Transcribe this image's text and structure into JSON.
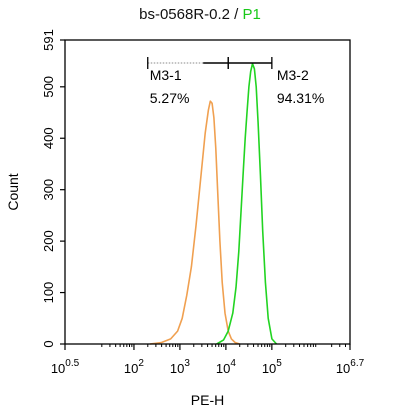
{
  "chart_data": {
    "type": "line",
    "title": {
      "sample": "bs-0568R-0.2",
      "separator": "/",
      "gate": "P1"
    },
    "xlabel": "PE-H",
    "ylabel": "Count",
    "x_scale": "log10",
    "xlim": [
      0.5,
      6.7
    ],
    "ylim": [
      0,
      591
    ],
    "x_ticks": [
      {
        "exp": "0.5",
        "value": 0.5
      },
      {
        "exp": "2",
        "value": 2
      },
      {
        "exp": "3",
        "value": 3
      },
      {
        "exp": "4",
        "value": 4
      },
      {
        "exp": "5",
        "value": 5
      },
      {
        "exp": "6.7",
        "value": 6.7
      }
    ],
    "y_ticks": [
      0,
      100,
      200,
      300,
      400,
      500,
      591
    ],
    "series": [
      {
        "color": "#f0a050",
        "x": [
          2.35,
          2.6,
          2.8,
          2.95,
          3.05,
          3.15,
          3.25,
          3.35,
          3.45,
          3.55,
          3.62,
          3.66,
          3.7,
          3.74,
          3.78,
          3.82,
          3.87,
          3.92,
          3.98,
          4.05,
          4.12,
          4.2,
          4.3
        ],
        "y": [
          0,
          3,
          10,
          25,
          50,
          95,
          150,
          230,
          320,
          410,
          455,
          472,
          468,
          440,
          380,
          300,
          200,
          120,
          60,
          25,
          10,
          3,
          0
        ]
      },
      {
        "color": "#22d422",
        "x": [
          3.8,
          3.95,
          4.05,
          4.15,
          4.22,
          4.28,
          4.33,
          4.38,
          4.42,
          4.46,
          4.5,
          4.54,
          4.58,
          4.62,
          4.66,
          4.7,
          4.75,
          4.8,
          4.86,
          4.92,
          5.0,
          5.1
        ],
        "y": [
          0,
          8,
          25,
          60,
          110,
          180,
          260,
          340,
          400,
          450,
          500,
          530,
          545,
          535,
          500,
          430,
          330,
          220,
          120,
          50,
          10,
          0
        ]
      }
    ],
    "markers": [
      {
        "name": "M3-1",
        "percent": "5.27%",
        "range": [
          2.3,
          4.05
        ]
      },
      {
        "name": "M3-2",
        "percent": "94.31%",
        "range": [
          4.05,
          5.0
        ]
      }
    ]
  }
}
